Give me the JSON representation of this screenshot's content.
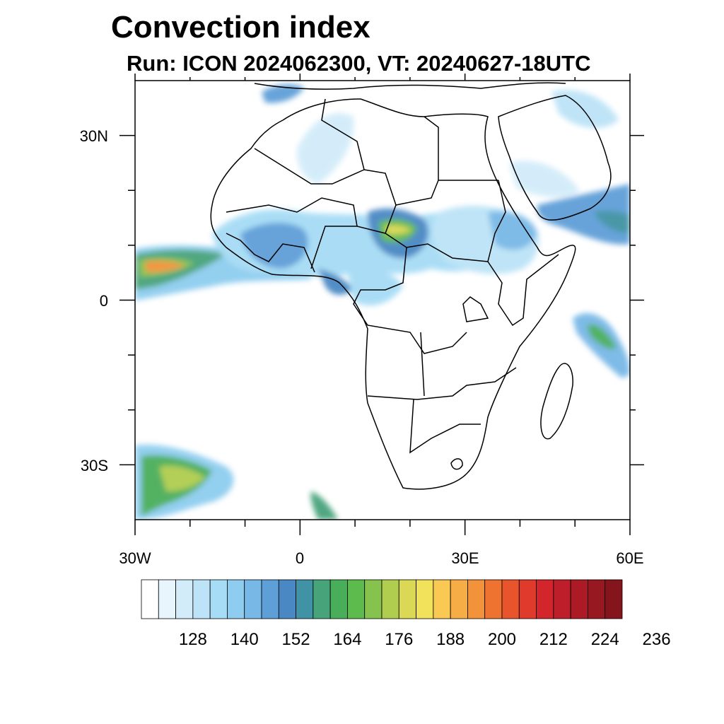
{
  "title": "Convection index",
  "subtitle": "Run: ICON 2024062300,  VT: 20240627-18UTC",
  "map": {
    "lon_range": [
      -30,
      60
    ],
    "lat_range": [
      -40,
      40
    ],
    "x_ticks": [
      {
        "lon": -30,
        "label": "30W"
      },
      {
        "lon": 0,
        "label": "0"
      },
      {
        "lon": 30,
        "label": "30E"
      },
      {
        "lon": 60,
        "label": "60E"
      }
    ],
    "y_ticks": [
      {
        "lat": 30,
        "label": "30N"
      },
      {
        "lat": 0,
        "label": "0"
      },
      {
        "lat": -30,
        "label": "30S"
      }
    ],
    "minor_lon": [
      -20,
      -10,
      10,
      20,
      40,
      50
    ],
    "minor_lat": [
      20,
      10,
      -10,
      -20
    ]
  },
  "colorbar": {
    "colors": [
      "#ffffff",
      "#e8f5fc",
      "#d2ecf9",
      "#bce3f7",
      "#a6dcf5",
      "#8ecdef",
      "#78b8e6",
      "#5e9fd8",
      "#4a88c4",
      "#3f93a4",
      "#46a37a",
      "#49ae5a",
      "#5dba4c",
      "#86c24e",
      "#b0cd50",
      "#dad855",
      "#f2e25b",
      "#f9c953",
      "#f6ad46",
      "#f2923a",
      "#ee7330",
      "#e8542c",
      "#df3a2c",
      "#d2262c",
      "#be1e2a",
      "#ac1a26",
      "#981822",
      "#85151d"
    ],
    "labels": [
      "128",
      "140",
      "152",
      "164",
      "176",
      "188",
      "200",
      "212",
      "224",
      "236"
    ]
  }
}
